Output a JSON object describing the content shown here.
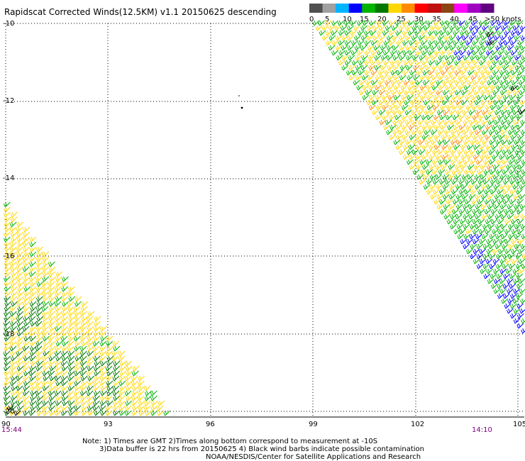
{
  "title": "Rapidscat Corrected Winds(12.5KM) v1.1 20150625 descending",
  "legend": {
    "ticks": [
      "0",
      "5",
      "10",
      "15",
      "20",
      "25",
      "30",
      "35",
      "40",
      "45",
      ">50 knots"
    ],
    "colors": [
      "#505050",
      "#a0a0a0",
      "#00b4ff",
      "#0000ff",
      "#00b400",
      "#007800",
      "#ffd700",
      "#ff8c00",
      "#ff0000",
      "#c01010",
      "#8b4513",
      "#ff00ff",
      "#a000c0",
      "#600080"
    ]
  },
  "lat_labels": [
    "-10",
    "-12",
    "-14",
    "-16",
    "-18",
    "-20"
  ],
  "lon_labels": [
    "90",
    "93",
    "96",
    "99",
    "102",
    "105"
  ],
  "time_left": "15:44",
  "time_right": "14:10",
  "notes": [
    "Note: 1) Times are GMT 2)Times along bottom correspond to measurement at -10S",
    "3)Data buffer is 22 hrs from 20150625 4) Black wind barbs indicate possible contamination",
    "NOAA/NESDIS/Center for Satellite Applications and Research"
  ]
}
